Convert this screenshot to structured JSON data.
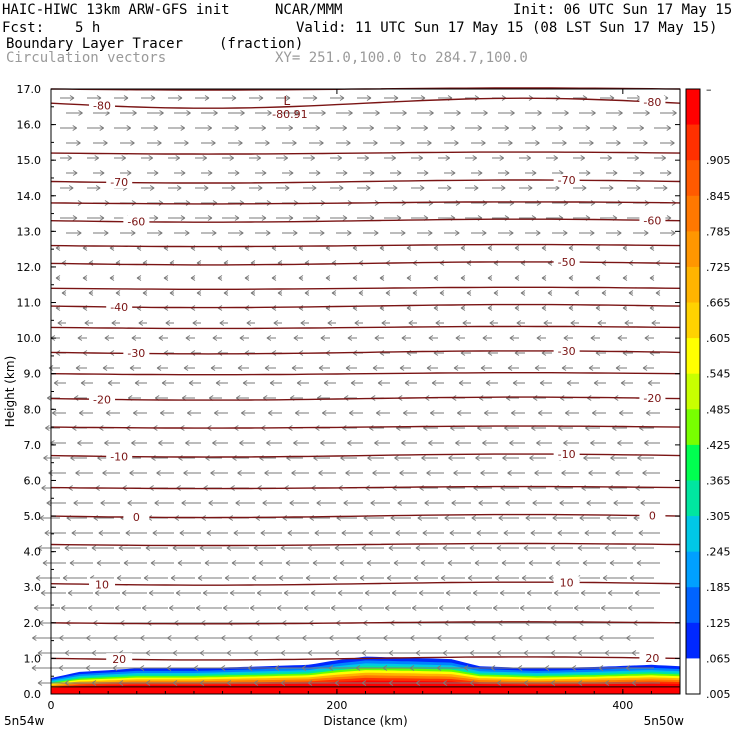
{
  "header": {
    "title_left": "HAIC-HIWC 13km ARW-GFS init",
    "org": "NCAR/MMM",
    "init": "Init: 06 UTC Sun 17 May 15",
    "fcst_label": "Fcst:",
    "fcst_value": "5 h",
    "valid": "Valid: 11 UTC Sun 17 May 15 (08 LST Sun 17 May 15)",
    "field": "Boundary Layer Tracer",
    "field_units": "(fraction)",
    "vectors": "Circulation vectors",
    "xy": "XY= 251.0,100.0 to 284.7,100.0"
  },
  "chart_data": {
    "type": "cross-section",
    "xlabel": "Distance (km)",
    "ylabel": "Height (km)",
    "xlim": [
      0,
      440
    ],
    "ylim": [
      0,
      17
    ],
    "x_ticks": [
      0,
      200,
      400
    ],
    "x_tick_labels": [
      "0",
      "200",
      "400"
    ],
    "y_ticks": [
      0,
      1,
      2,
      3,
      4,
      5,
      6,
      7,
      8,
      9,
      10,
      11,
      12,
      13,
      14,
      15,
      16,
      17
    ],
    "y_tick_labels": [
      "0.0",
      "1.0",
      "2.0",
      "3.0",
      "4.0",
      "5.0",
      "6.0",
      "7.0",
      "8.0",
      "9.0",
      "10.0",
      "11.0",
      "12.0",
      "13.0",
      "14.0",
      "15.0",
      "16.0",
      "17.0"
    ],
    "left_end_label": "5n54w",
    "right_end_label": "5n50w",
    "terrain_km": 0.2,
    "tracer_boundary": {
      "x": [
        0,
        20,
        60,
        100,
        150,
        180,
        200,
        220,
        250,
        280,
        300,
        340,
        380,
        420,
        440
      ],
      "top_km": [
        0.45,
        0.62,
        0.72,
        0.72,
        0.78,
        0.82,
        0.95,
        1.05,
        1.02,
        0.98,
        0.78,
        0.72,
        0.76,
        0.82,
        0.78
      ]
    },
    "temperature_contours": [
      {
        "label": "-80",
        "height_km": 16.6,
        "show_left": true,
        "show_right": true
      },
      {
        "label": "-70",
        "height_km": 14.4,
        "show_left": true,
        "show_right": true
      },
      {
        "label": "-60",
        "height_km": 13.3,
        "show_left": true,
        "show_right": true
      },
      {
        "label": "-50",
        "height_km": 12.1,
        "show_left": false,
        "show_right": true
      },
      {
        "label": "-40",
        "height_km": 10.9,
        "show_left": true,
        "show_right": false
      },
      {
        "label": "-30",
        "height_km": 9.6,
        "show_left": true,
        "show_right": true
      },
      {
        "label": "-20",
        "height_km": 8.3,
        "show_left": true,
        "show_right": true
      },
      {
        "label": "-10",
        "height_km": 6.7,
        "show_left": true,
        "show_right": true
      },
      {
        "label": "0",
        "height_km": 5.0,
        "show_left": true,
        "show_right": true
      },
      {
        "label": "10",
        "height_km": 3.1,
        "show_left": true,
        "show_right": true
      },
      {
        "label": "20",
        "height_km": 1.0,
        "show_left": true,
        "show_right": true
      }
    ],
    "unlabeled_contour_heights_km": [
      17.0,
      15.2,
      13.8,
      12.6,
      11.4,
      10.3,
      9.0,
      7.5,
      5.8,
      4.2,
      2.0
    ],
    "low_marker": {
      "symbol": "L",
      "value": "-80.91",
      "x_km": 165,
      "height_km": 16.5
    },
    "colorbar": {
      "labels": [
        ".905",
        ".845",
        ".785",
        ".725",
        ".665",
        ".605",
        ".545",
        ".485",
        ".425",
        ".365",
        ".305",
        ".245",
        ".185",
        ".125",
        ".065",
        ".005"
      ],
      "top_label": "–",
      "colors": [
        "#ff0000",
        "#ff3000",
        "#ff5a00",
        "#ff7800",
        "#ff9600",
        "#ffb400",
        "#ffd200",
        "#ffff00",
        "#c8ff00",
        "#78ff00",
        "#00ff50",
        "#00e6a0",
        "#00c8e6",
        "#00a0ff",
        "#0064ff",
        "#0028ff",
        "#ffffff"
      ]
    }
  }
}
